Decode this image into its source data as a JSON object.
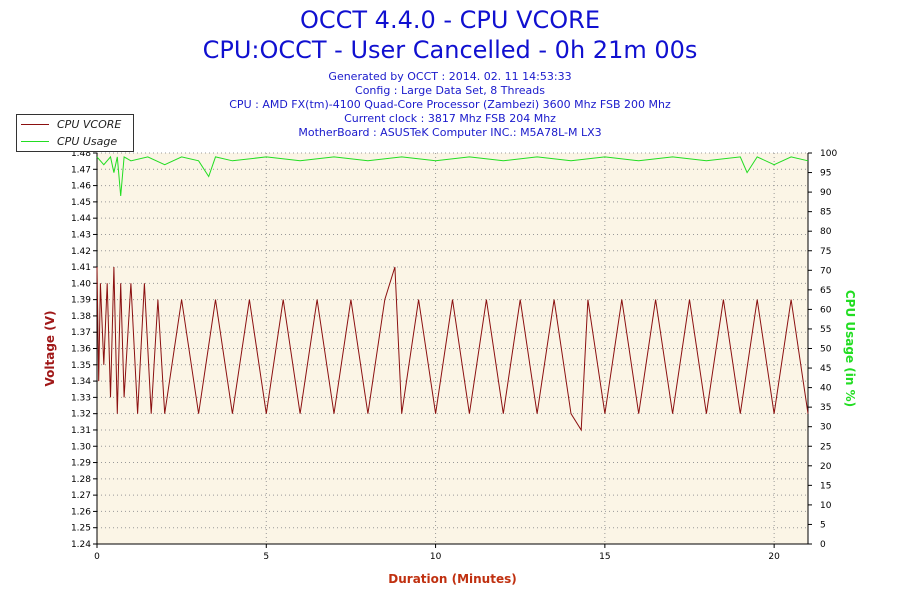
{
  "header": {
    "title": "OCCT 4.4.0 - CPU VCORE",
    "subtitle": "CPU:OCCT - User Cancelled - 0h 21m 00s",
    "info_lines": [
      "Generated by OCCT : 2014. 02. 11 14:53:33",
      "Config : Large Data Set, 8 Threads",
      "CPU : AMD FX(tm)-4100 Quad-Core Processor (Zambezi) 3600 Mhz FSB 200 Mhz",
      "Current clock : 3817 Mhz FSB 204 Mhz",
      "MotherBoard : ASUSTeK Computer INC.: M5A78L-M LX3"
    ]
  },
  "colors": {
    "vcore": "#8b1010",
    "usage": "#22dd22",
    "plot_bg": "#fbf5e6",
    "title": "#1010d0"
  },
  "chart_data": {
    "type": "line",
    "title": "OCCT 4.4.0 - CPU VCORE",
    "xlabel": "Duration (Minutes)",
    "ylabel": "Voltage (V)",
    "y2label": "CPU Usage (in %)",
    "xlim": [
      0,
      21
    ],
    "ylim": [
      1.24,
      1.48
    ],
    "y2lim": [
      0,
      100
    ],
    "x_ticks": [
      "0",
      "5",
      "10",
      "15",
      "20"
    ],
    "y_ticks": [
      "1.24",
      "1.25",
      "1.26",
      "1.27",
      "1.28",
      "1.29",
      "1.30",
      "1.31",
      "1.32",
      "1.33",
      "1.34",
      "1.35",
      "1.36",
      "1.37",
      "1.38",
      "1.39",
      "1.40",
      "1.41",
      "1.42",
      "1.43",
      "1.44",
      "1.45",
      "1.46",
      "1.47",
      "1.48"
    ],
    "y2_ticks": [
      "0",
      "5",
      "10",
      "15",
      "20",
      "25",
      "30",
      "35",
      "40",
      "45",
      "50",
      "55",
      "60",
      "65",
      "70",
      "75",
      "80",
      "85",
      "90",
      "95",
      "100"
    ],
    "grid": true,
    "legend_position": "top-left",
    "series": [
      {
        "name": "CPU VCORE",
        "axis": "left",
        "color": "#8b1010",
        "x": [
          0,
          0.05,
          0.1,
          0.2,
          0.3,
          0.4,
          0.5,
          0.6,
          0.7,
          0.8,
          1,
          1.2,
          1.4,
          1.6,
          1.8,
          2,
          2.5,
          3,
          3.5,
          4,
          4.5,
          5,
          5.5,
          6,
          6.5,
          7,
          7.5,
          8,
          8.5,
          8.8,
          9,
          9.5,
          10,
          10.5,
          11,
          11.5,
          12,
          12.5,
          13,
          13.5,
          14,
          14.3,
          14.5,
          15,
          15.5,
          16,
          16.5,
          17,
          17.5,
          18,
          18.5,
          19,
          19.5,
          20,
          20.5,
          21
        ],
        "values": [
          1.41,
          1.34,
          1.4,
          1.35,
          1.4,
          1.33,
          1.41,
          1.32,
          1.4,
          1.33,
          1.4,
          1.32,
          1.4,
          1.32,
          1.39,
          1.32,
          1.39,
          1.32,
          1.39,
          1.32,
          1.39,
          1.32,
          1.39,
          1.32,
          1.39,
          1.32,
          1.39,
          1.32,
          1.39,
          1.41,
          1.32,
          1.39,
          1.32,
          1.39,
          1.32,
          1.39,
          1.32,
          1.39,
          1.32,
          1.39,
          1.32,
          1.31,
          1.39,
          1.32,
          1.39,
          1.32,
          1.39,
          1.32,
          1.39,
          1.32,
          1.39,
          1.32,
          1.39,
          1.32,
          1.39,
          1.32
        ]
      },
      {
        "name": "CPU Usage",
        "axis": "right",
        "color": "#22dd22",
        "x": [
          0,
          0.2,
          0.4,
          0.5,
          0.6,
          0.7,
          0.8,
          1,
          1.5,
          2,
          2.5,
          3,
          3.3,
          3.5,
          4,
          5,
          6,
          7,
          8,
          9,
          10,
          11,
          12,
          13,
          14,
          15,
          16,
          17,
          18,
          19,
          19.2,
          19.5,
          20,
          20.5,
          21
        ],
        "values": [
          99,
          97,
          99,
          95,
          99,
          89,
          99,
          98,
          99,
          97,
          99,
          98,
          94,
          99,
          98,
          99,
          98,
          99,
          98,
          99,
          98,
          99,
          98,
          99,
          98,
          99,
          98,
          99,
          98,
          99,
          95,
          99,
          97,
          99,
          98
        ]
      }
    ]
  }
}
